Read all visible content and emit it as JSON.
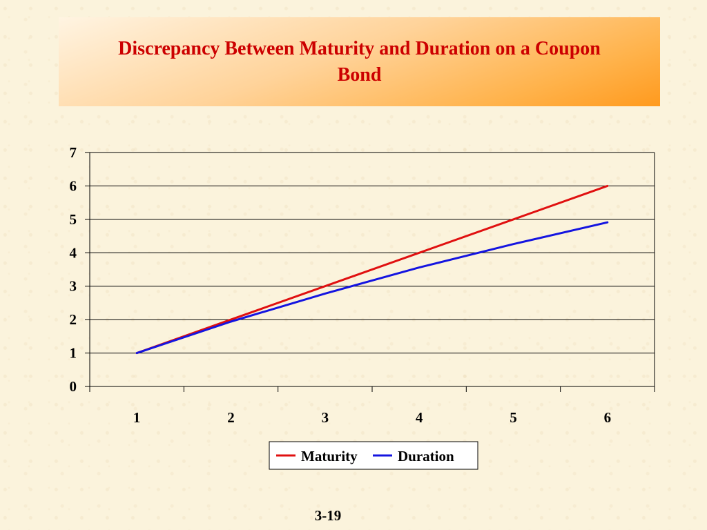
{
  "slide": {
    "title": "Discrepancy Between Maturity and Duration on a Coupon Bond",
    "page_number": "3-19"
  },
  "colors": {
    "title_text": "#cc0000",
    "maturity": "#e01010",
    "duration": "#1414e0",
    "background": "#fbf3dc"
  },
  "chart_data": {
    "type": "line",
    "title": "",
    "xlabel": "",
    "ylabel": "",
    "categories": [
      "1",
      "2",
      "3",
      "4",
      "5",
      "6"
    ],
    "ylim": [
      0,
      7
    ],
    "yticks": [
      0,
      1,
      2,
      3,
      4,
      5,
      6,
      7
    ],
    "grid": true,
    "legend_position": "bottom",
    "series": [
      {
        "name": "Maturity",
        "color": "#e01010",
        "values": [
          1,
          2,
          3,
          4,
          5,
          6
        ]
      },
      {
        "name": "Duration",
        "color": "#1414e0",
        "values": [
          1,
          1.94,
          2.78,
          3.56,
          4.26,
          4.91
        ]
      }
    ]
  }
}
